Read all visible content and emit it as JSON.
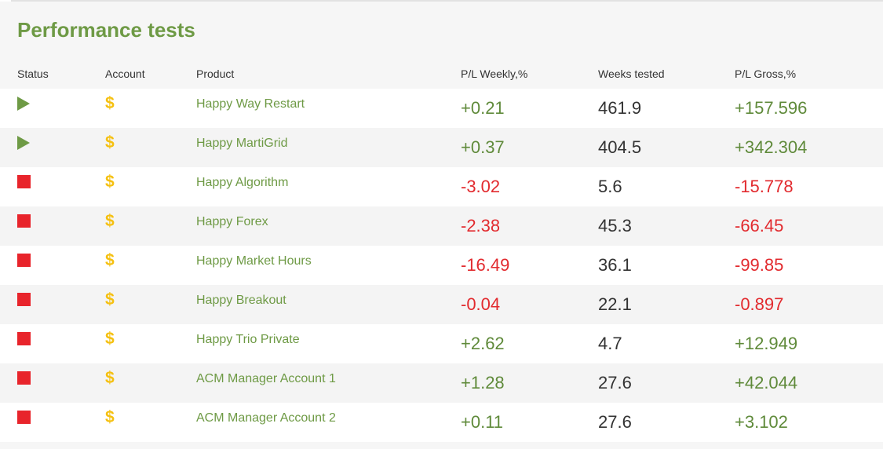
{
  "page": {
    "title": "Performance tests"
  },
  "colors": {
    "accent_green": "#6e9a45",
    "positive": "#5f8a3a",
    "negative": "#e22a2e",
    "dollar": "#f5c010"
  },
  "table": {
    "headers": {
      "status": "Status",
      "account": "Account",
      "product": "Product",
      "pl_weekly": "P/L Weekly,%",
      "weeks_tested": "Weeks tested",
      "pl_gross": "P/L Gross,%"
    },
    "rows": [
      {
        "status": "running",
        "status_icon": "play-icon",
        "account_icon": "dollar-icon",
        "account": "$",
        "product": "Happy Way Restart",
        "pl_weekly": "+0.21",
        "weeks_tested": "461.9",
        "pl_gross": "+157.596"
      },
      {
        "status": "running",
        "status_icon": "play-icon",
        "account_icon": "dollar-icon",
        "account": "$",
        "product": "Happy MartiGrid",
        "pl_weekly": "+0.37",
        "weeks_tested": "404.5",
        "pl_gross": "+342.304"
      },
      {
        "status": "stopped",
        "status_icon": "stop-icon",
        "account_icon": "dollar-icon",
        "account": "$",
        "product": "Happy Algorithm",
        "pl_weekly": "-3.02",
        "weeks_tested": "5.6",
        "pl_gross": "-15.778"
      },
      {
        "status": "stopped",
        "status_icon": "stop-icon",
        "account_icon": "dollar-icon",
        "account": "$",
        "product": "Happy Forex",
        "pl_weekly": "-2.38",
        "weeks_tested": "45.3",
        "pl_gross": "-66.45"
      },
      {
        "status": "stopped",
        "status_icon": "stop-icon",
        "account_icon": "dollar-icon",
        "account": "$",
        "product": "Happy Market Hours",
        "pl_weekly": "-16.49",
        "weeks_tested": "36.1",
        "pl_gross": "-99.85"
      },
      {
        "status": "stopped",
        "status_icon": "stop-icon",
        "account_icon": "dollar-icon",
        "account": "$",
        "product": "Happy Breakout",
        "pl_weekly": "-0.04",
        "weeks_tested": "22.1",
        "pl_gross": "-0.897"
      },
      {
        "status": "stopped",
        "status_icon": "stop-icon",
        "account_icon": "dollar-icon",
        "account": "$",
        "product": "Happy Trio Private",
        "pl_weekly": "+2.62",
        "weeks_tested": "4.7",
        "pl_gross": "+12.949"
      },
      {
        "status": "stopped",
        "status_icon": "stop-icon",
        "account_icon": "dollar-icon",
        "account": "$",
        "product": "ACM Manager Account 1",
        "pl_weekly": "+1.28",
        "weeks_tested": "27.6",
        "pl_gross": "+42.044"
      },
      {
        "status": "stopped",
        "status_icon": "stop-icon",
        "account_icon": "dollar-icon",
        "account": "$",
        "product": "ACM Manager Account 2",
        "pl_weekly": "+0.11",
        "weeks_tested": "27.6",
        "pl_gross": "+3.102"
      }
    ]
  }
}
